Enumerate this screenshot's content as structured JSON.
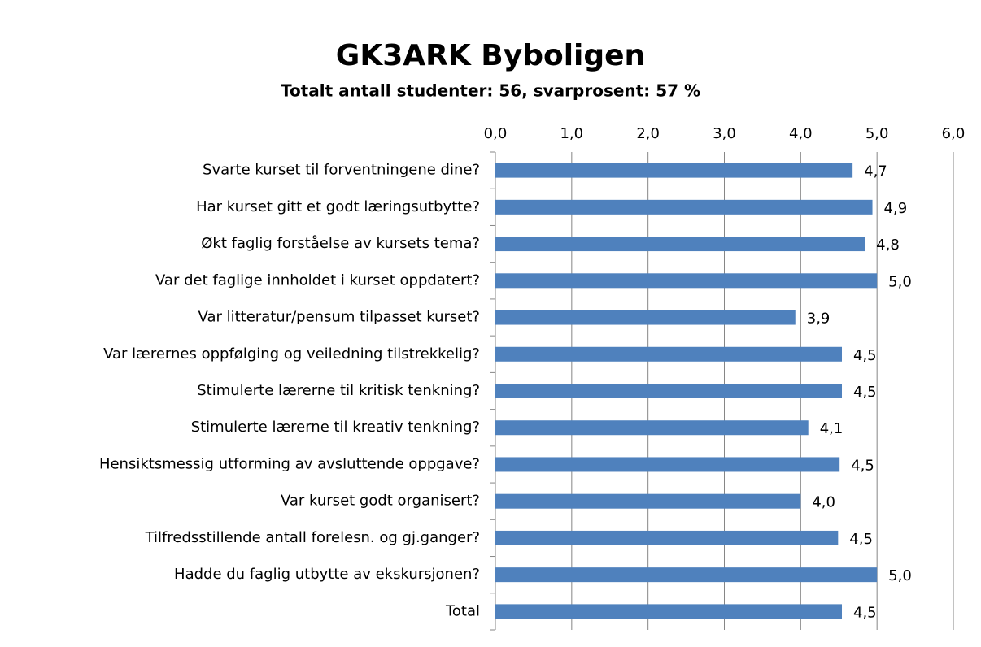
{
  "chart_data": {
    "type": "hbar",
    "title": "GK3ARK Byboligen",
    "subtitle": "Totalt antall studenter: 56, svarprosent: 57 %",
    "categories": [
      "Svarte kurset til forventningene dine?",
      "Har kurset gitt et godt læringsutbytte?",
      "Økt faglig forståelse av kursets tema?",
      "Var det faglige innholdet i kurset oppdatert?",
      "Var litteratur/pensum tilpasset kurset?",
      "Var lærernes oppfølging og veiledning tilstrekkelig?",
      "Stimulerte lærerne til kritisk tenkning?",
      "Stimulerte lærerne til kreativ tenkning?",
      "Hensiktsmessig utforming av avsluttende oppgave?",
      "Var kurset godt organisert?",
      "Tilfredsstillende antall forelesn. og gj.ganger?",
      "Hadde du faglig utbytte av ekskursjonen?",
      "Total"
    ],
    "values": [
      4.68,
      4.94,
      4.84,
      5.0,
      3.93,
      4.54,
      4.54,
      4.1,
      4.51,
      4.0,
      4.49,
      5.0,
      4.54
    ],
    "value_labels": [
      "4,7",
      "4,9",
      "4,8",
      "5,0",
      "3,9",
      "4,5",
      "4,5",
      "4,1",
      "4,5",
      "4,0",
      "4,5",
      "5,0",
      "4,5"
    ],
    "color": "#4f81bd",
    "xlim": [
      0,
      6
    ],
    "xticks": [
      {
        "value": 0,
        "label": "0,0"
      },
      {
        "value": 1,
        "label": "1,0"
      },
      {
        "value": 2,
        "label": "2,0"
      },
      {
        "value": 3,
        "label": "3,0"
      },
      {
        "value": 4,
        "label": "4,0"
      },
      {
        "value": 5,
        "label": "5,0"
      },
      {
        "value": 6,
        "label": "6,0"
      }
    ],
    "grid": true
  }
}
